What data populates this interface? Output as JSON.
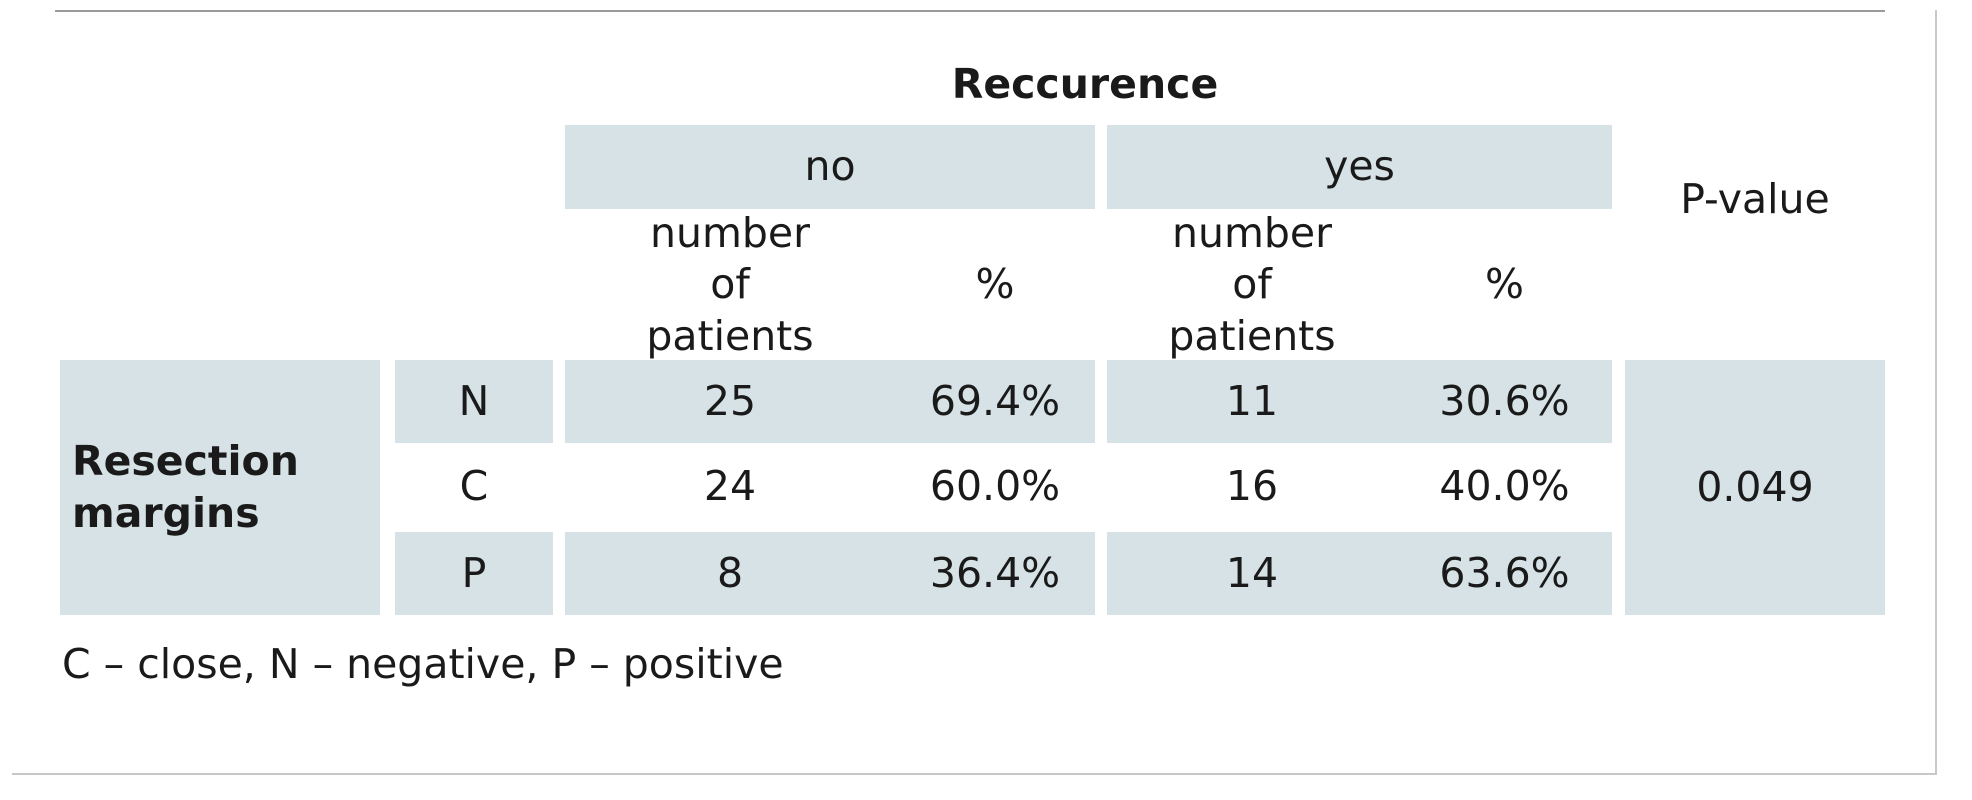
{
  "table": {
    "header_group": "Reccurence",
    "no_label": "no",
    "yes_label": "yes",
    "pvalue_label": "P-value",
    "count_label": "number of patients",
    "pct_label": "%",
    "row_group_label": "Resection margins",
    "pvalue": "0.049",
    "rows": [
      {
        "margin": "N",
        "no_n": "25",
        "no_pct": "69.4%",
        "yes_n": "11",
        "yes_pct": "30.6%"
      },
      {
        "margin": "C",
        "no_n": "24",
        "no_pct": "60.0%",
        "yes_n": "16",
        "yes_pct": "40.0%"
      },
      {
        "margin": "P",
        "no_n": "8",
        "no_pct": "36.4%",
        "yes_n": "14",
        "yes_pct": "63.6%"
      }
    ]
  },
  "footnote": "C – close, N – negative, P – positive"
}
